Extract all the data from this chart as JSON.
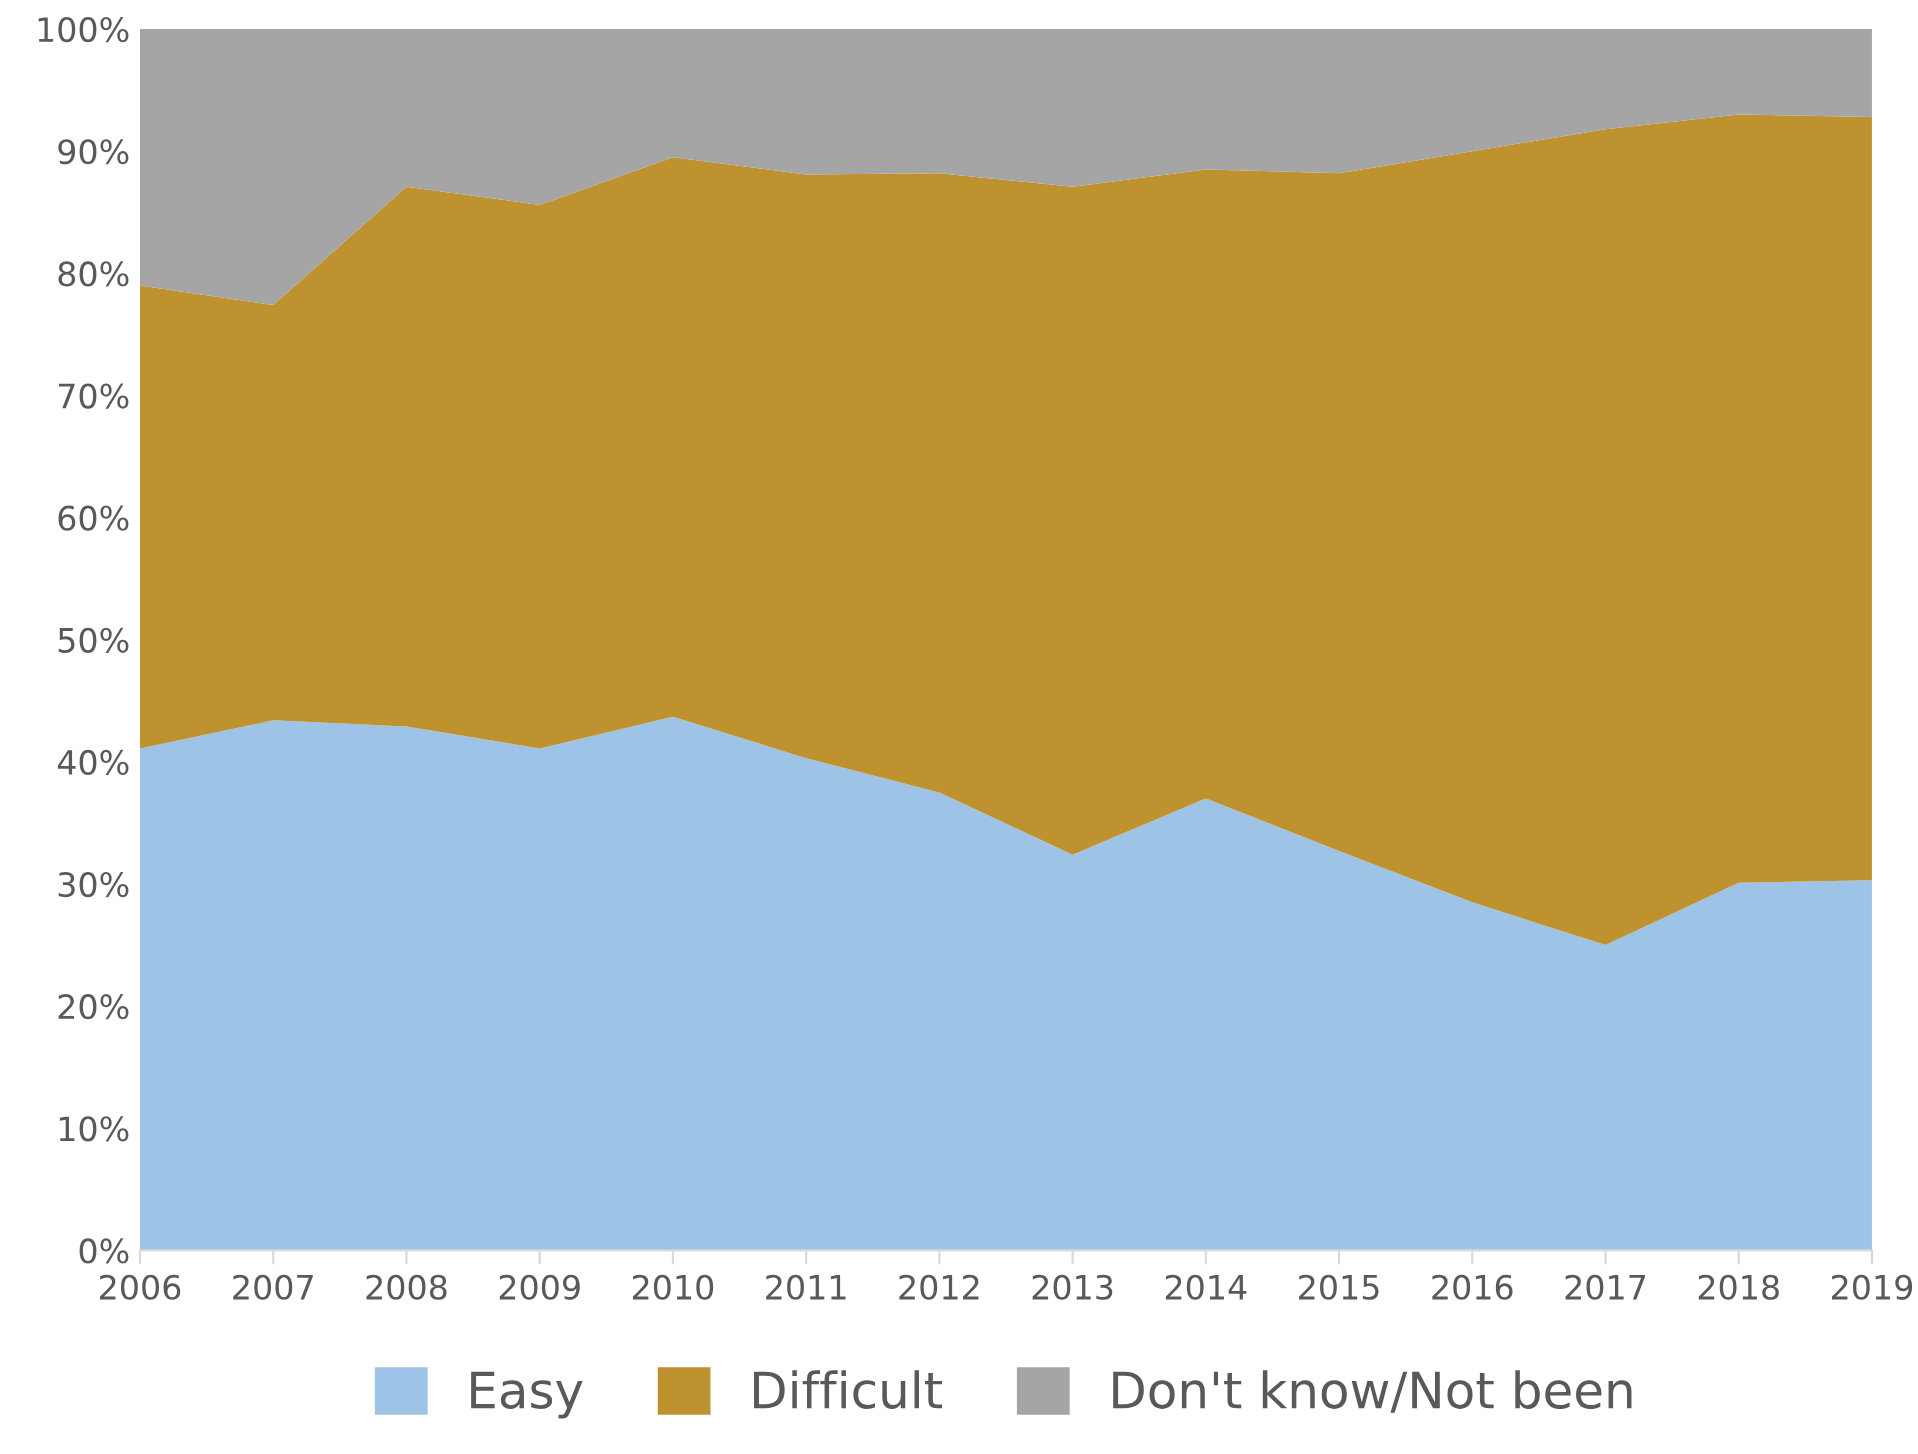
{
  "chart_data": {
    "type": "area",
    "stacked": true,
    "x": [
      2006,
      2007,
      2008,
      2009,
      2010,
      2011,
      2012,
      2013,
      2014,
      2015,
      2016,
      2017,
      2018,
      2019
    ],
    "series": [
      {
        "name": "Easy",
        "color": "#9dc3e6",
        "values": [
          41.1,
          43.4,
          42.9,
          41.1,
          43.7,
          40.3,
          37.5,
          32.4,
          37.0,
          32.7,
          28.5,
          25.0,
          30.1,
          30.3
        ]
      },
      {
        "name": "Difficult",
        "color": "#bf9230",
        "values": [
          37.9,
          34.0,
          44.2,
          44.5,
          45.8,
          47.8,
          50.7,
          54.7,
          51.5,
          55.5,
          61.5,
          66.8,
          62.9,
          62.5
        ]
      },
      {
        "name": "Don't know/Not been",
        "color": "#a5a5a5",
        "values": [
          21.0,
          22.6,
          12.9,
          14.4,
          10.5,
          11.9,
          11.8,
          12.9,
          11.5,
          11.8,
          10.0,
          8.2,
          7.0,
          7.2
        ]
      }
    ],
    "xlim": [
      2006,
      2019
    ],
    "xticks": [
      2006,
      2007,
      2008,
      2009,
      2010,
      2011,
      2012,
      2013,
      2014,
      2015,
      2016,
      2017,
      2018,
      2019
    ],
    "ylim": [
      0,
      100
    ],
    "yticks": [
      {
        "value": 0,
        "label": "0%"
      },
      {
        "value": 10,
        "label": "10%"
      },
      {
        "value": 20,
        "label": "20%"
      },
      {
        "value": 30,
        "label": "30%"
      },
      {
        "value": 40,
        "label": "40%"
      },
      {
        "value": 50,
        "label": "50%"
      },
      {
        "value": 60,
        "label": "60%"
      },
      {
        "value": 70,
        "label": "70%"
      },
      {
        "value": 80,
        "label": "80%"
      },
      {
        "value": 90,
        "label": "90%"
      },
      {
        "value": 100,
        "label": "100%"
      }
    ],
    "grid": false,
    "legend": "bottom"
  }
}
